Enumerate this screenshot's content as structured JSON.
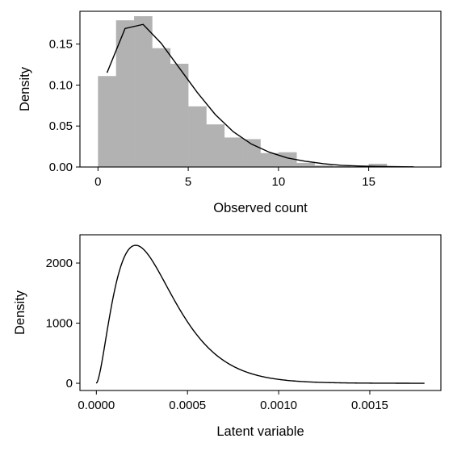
{
  "colors": {
    "bar": "#b2b2b2",
    "line": "#000000",
    "frame": "#000000"
  },
  "chart_data": [
    {
      "type": "bar",
      "xlabel": "Observed count",
      "ylabel": "Density",
      "xlim": [
        -1,
        19
      ],
      "ylim": [
        0,
        0.19
      ],
      "xticks": [
        0,
        5,
        10,
        15
      ],
      "xtick_labels": [
        "0",
        "5",
        "10",
        "15"
      ],
      "yticks": [
        0,
        0.05,
        0.1,
        0.15
      ],
      "ytick_labels": [
        "0.00",
        "0.05",
        "0.10",
        "0.15"
      ],
      "grid": false,
      "histogram": {
        "bin_edges": [
          0,
          1,
          2,
          3,
          4,
          5,
          6,
          7,
          8,
          9,
          10,
          11,
          12,
          13,
          14,
          15,
          16,
          17
        ],
        "densities": [
          0.111,
          0.179,
          0.184,
          0.145,
          0.126,
          0.074,
          0.052,
          0.036,
          0.034,
          0.017,
          0.018,
          0.005,
          0.002,
          0.001,
          0.0,
          0.004,
          0.0
        ]
      },
      "density_curve": {
        "x": [
          0.5,
          1.5,
          2.5,
          3.5,
          4.5,
          5.5,
          6.5,
          7.5,
          8.5,
          9.5,
          10.5,
          11.5,
          12.5,
          13.5,
          14.5,
          15.5,
          16.5,
          17.5
        ],
        "y": [
          0.115,
          0.169,
          0.174,
          0.151,
          0.121,
          0.091,
          0.064,
          0.043,
          0.028,
          0.018,
          0.011,
          0.007,
          0.004,
          0.002,
          0.0012,
          0.0007,
          0.0004,
          0.0002
        ]
      }
    },
    {
      "type": "line",
      "xlabel": "Latent variable",
      "ylabel": "Density",
      "xlim": [
        -9e-05,
        0.00189
      ],
      "ylim": [
        -120,
        2470
      ],
      "xticks": [
        0,
        0.0005,
        0.001,
        0.0015
      ],
      "xtick_labels": [
        "0.0000",
        "0.0005",
        "0.0010",
        "0.0015"
      ],
      "yticks": [
        0,
        1000,
        2000
      ],
      "ytick_labels": [
        "0",
        "1000",
        "2000"
      ],
      "grid": false,
      "distribution": {
        "family": "gamma",
        "shape": 2.7,
        "scale": 0.000127,
        "x_start": 0,
        "x_end": 0.0018
      }
    }
  ]
}
